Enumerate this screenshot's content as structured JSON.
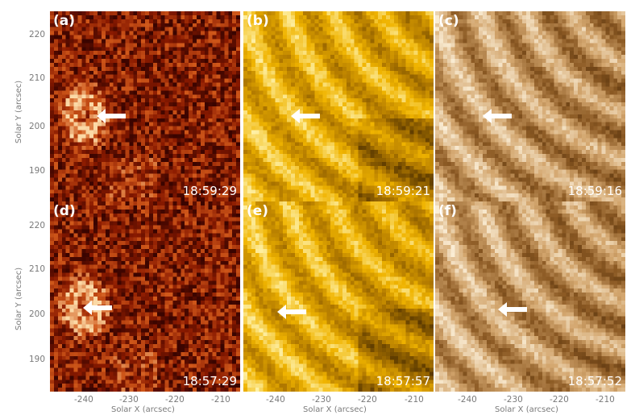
{
  "panels": [
    {
      "label": "(a)",
      "time": "18:59:29",
      "palette": "red"
    },
    {
      "label": "(b)",
      "time": "18:59:21",
      "palette": "gold"
    },
    {
      "label": "(c)",
      "time": "18:59:16",
      "palette": "brown"
    },
    {
      "label": "(d)",
      "time": "18:57:29",
      "palette": "red"
    },
    {
      "label": "(e)",
      "time": "18:57:57",
      "palette": "gold"
    },
    {
      "label": "(f)",
      "time": "18:57:52",
      "palette": "brown"
    }
  ],
  "axes": {
    "xlabel": "Solar X (arcsec)",
    "ylabel": "Solar Y (arcsec)",
    "x_ticks": [
      "-240",
      "-230",
      "-220",
      "-210"
    ],
    "y_ticks": [
      "220",
      "210",
      "200",
      "190"
    ]
  },
  "colors": {
    "red": [
      "#3a0400",
      "#8a1a00",
      "#d0581a",
      "#fbd9a6"
    ],
    "gold": [
      "#5c3a00",
      "#b27a00",
      "#f0b400",
      "#fff4b0"
    ],
    "brown": [
      "#3e1f00",
      "#8c5a24",
      "#d3a66e",
      "#fdf2dc"
    ]
  },
  "icons": {
    "arrow": "left-arrow-icon"
  }
}
